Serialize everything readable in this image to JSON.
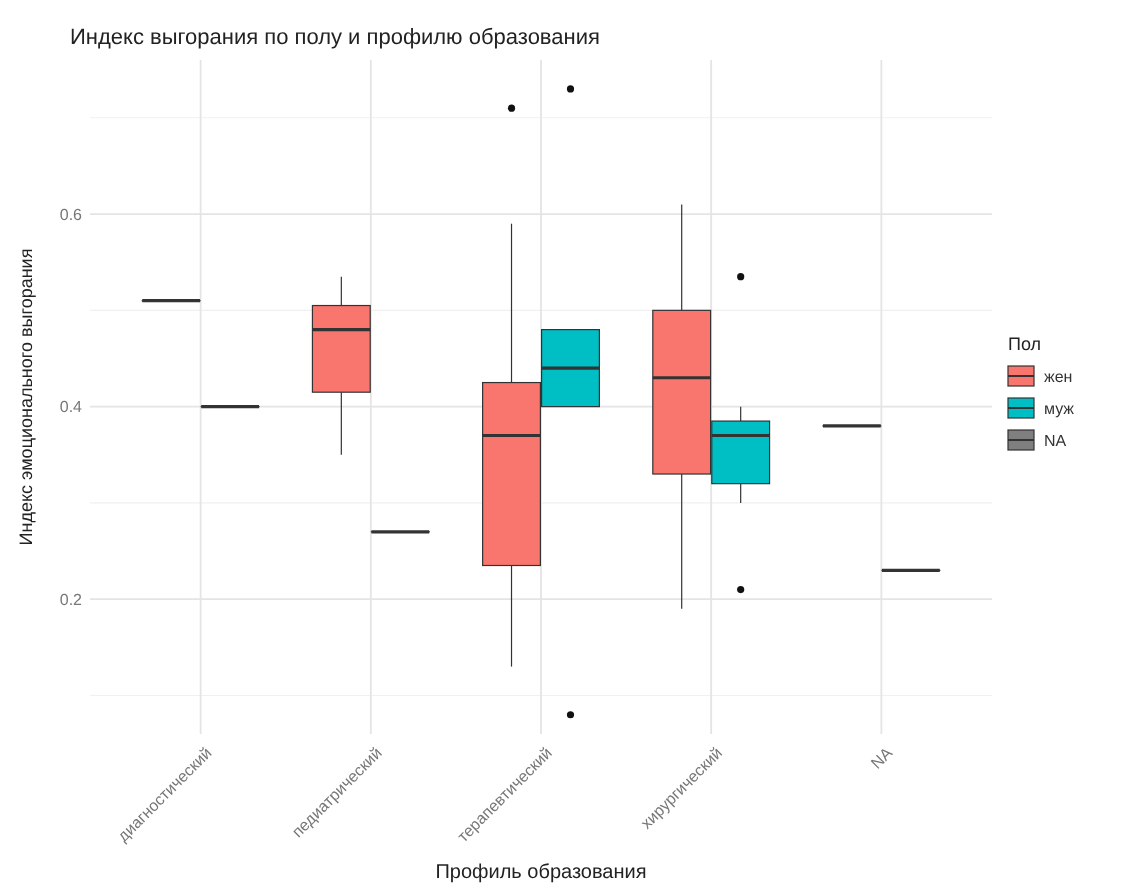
{
  "chart_data": {
    "type": "box",
    "title": "Индекс выгорания по полу и профилю образования",
    "xlabel": "Профиль образования",
    "ylabel": "Индекс эмоционального выгорания",
    "legend_title": "Пол",
    "categories": [
      "диагностический",
      "педиатрический",
      "терапевтический",
      "хирургический",
      "NA"
    ],
    "series": [
      {
        "name": "жен",
        "color": "#f8766d",
        "boxes": [
          {
            "low": 0.51,
            "q1": 0.51,
            "median": 0.51,
            "q3": 0.51,
            "high": 0.51
          },
          {
            "low": 0.35,
            "q1": 0.415,
            "median": 0.48,
            "q3": 0.505,
            "high": 0.535
          },
          {
            "low": 0.13,
            "q1": 0.235,
            "median": 0.37,
            "q3": 0.425,
            "high": 0.59,
            "outliers": [
              0.71
            ]
          },
          {
            "low": 0.19,
            "q1": 0.33,
            "median": 0.43,
            "q3": 0.5,
            "high": 0.61
          },
          {
            "low": 0.38,
            "q1": 0.38,
            "median": 0.38,
            "q3": 0.38,
            "high": 0.38
          }
        ]
      },
      {
        "name": "муж",
        "color": "#00bfc4",
        "boxes": [
          {
            "low": 0.4,
            "q1": 0.4,
            "median": 0.4,
            "q3": 0.4,
            "high": 0.4
          },
          {
            "low": 0.27,
            "q1": 0.27,
            "median": 0.27,
            "q3": 0.27,
            "high": 0.27
          },
          {
            "low": 0.4,
            "q1": 0.4,
            "median": 0.44,
            "q3": 0.48,
            "high": 0.48,
            "outliers": [
              0.73,
              0.08
            ]
          },
          {
            "low": 0.3,
            "q1": 0.32,
            "median": 0.37,
            "q3": 0.385,
            "high": 0.4,
            "outliers": [
              0.535,
              0.21
            ]
          },
          {
            "low": 0.23,
            "q1": 0.23,
            "median": 0.23,
            "q3": 0.23,
            "high": 0.23
          }
        ]
      },
      {
        "name": "NA",
        "color": "#7f7f7f",
        "boxes": [
          null,
          null,
          null,
          null,
          null
        ]
      }
    ],
    "ylim": [
      0.06,
      0.76
    ],
    "yticks": [
      0.2,
      0.4,
      0.6
    ],
    "grid": true,
    "legend": "right"
  }
}
